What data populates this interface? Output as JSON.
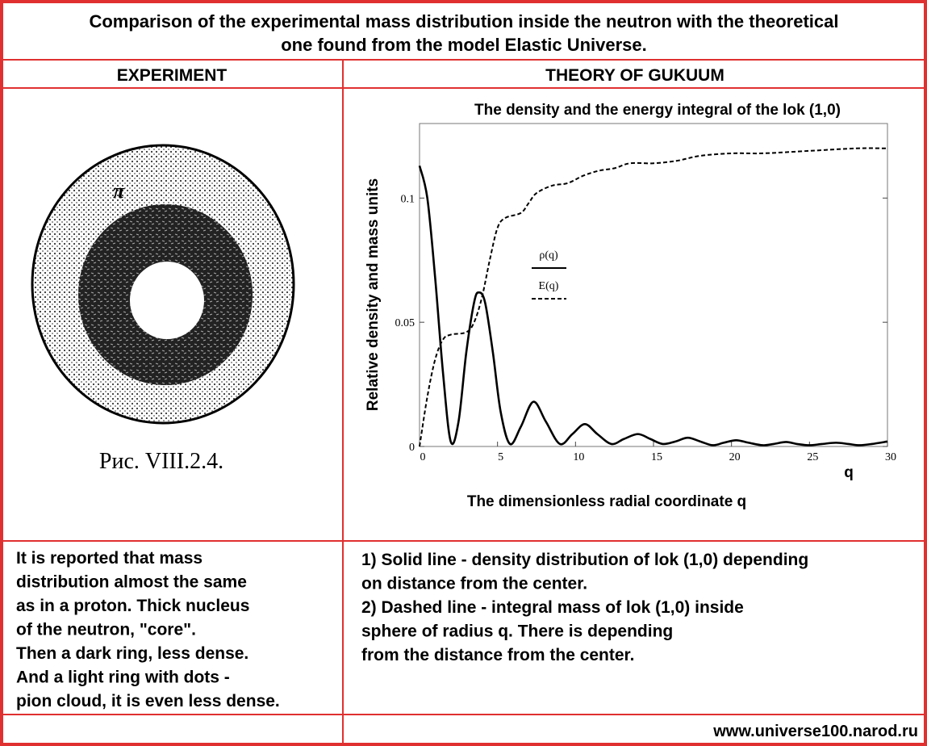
{
  "header": {
    "title_lines": [
      "Comparison of the experimental mass distribution inside the neutron with the theoretical",
      "one found from the model Elastic Universe."
    ],
    "left_column": "EXPERIMENT",
    "right_column": "THEORY OF GUKUUM"
  },
  "figure": {
    "symbol": "π",
    "caption": "Рис. VIII.2.4."
  },
  "chart_data": {
    "type": "line",
    "title": "The density and the energy integral of the lok (1,0)",
    "x_label": "The dimensionless radial coordinate q",
    "x_symbol": "q",
    "y_label": "Relative density and mass units",
    "xlim": [
      0,
      30
    ],
    "xticks": [
      0,
      5,
      10,
      15,
      20,
      25,
      30
    ],
    "ylim": [
      0,
      0.13
    ],
    "yticks": [
      0,
      0.05,
      0.1
    ],
    "series": [
      {
        "name": "ρ(q)",
        "color": "#000000",
        "dash": false,
        "x": [
          0,
          0.5,
          1,
          1.5,
          2,
          2.5,
          3,
          3.5,
          3.8,
          4.2,
          4.7,
          5.2,
          5.8,
          6.5,
          7.3,
          8.1,
          9,
          9.8,
          10.6,
          11.4,
          12.3,
          13.1,
          14,
          14.8,
          15.6,
          16.4,
          17.2,
          18,
          18.8,
          19.5,
          20.3,
          21.1,
          22,
          22.7,
          23.5,
          24.2,
          25,
          25.8,
          26.7,
          27.5,
          28.2,
          29,
          30
        ],
        "values": [
          0.113,
          0.1,
          0.068,
          0.03,
          0.002,
          0.01,
          0.038,
          0.058,
          0.062,
          0.058,
          0.038,
          0.014,
          0.001,
          0.008,
          0.018,
          0.01,
          0.001,
          0.005,
          0.009,
          0.005,
          0.001,
          0.003,
          0.005,
          0.003,
          0.001,
          0.002,
          0.0035,
          0.002,
          0.0005,
          0.0015,
          0.0025,
          0.0015,
          0.0005,
          0.001,
          0.0018,
          0.001,
          0.0005,
          0.001,
          0.0015,
          0.001,
          0.0005,
          0.001,
          0.002
        ]
      },
      {
        "name": "E(q)",
        "color": "#000000",
        "dash": true,
        "x": [
          0,
          0.5,
          1,
          1.5,
          2,
          3,
          3.5,
          4,
          4.5,
          5,
          5.5,
          6.5,
          7,
          7.5,
          8.5,
          9.5,
          10.5,
          11.5,
          12.5,
          13.5,
          15,
          16.5,
          18,
          20,
          22,
          25,
          28,
          30
        ],
        "values": [
          0,
          0.02,
          0.035,
          0.043,
          0.045,
          0.046,
          0.05,
          0.06,
          0.075,
          0.088,
          0.092,
          0.094,
          0.098,
          0.102,
          0.105,
          0.106,
          0.109,
          0.111,
          0.112,
          0.114,
          0.114,
          0.115,
          0.117,
          0.118,
          0.118,
          0.119,
          0.12,
          0.12
        ]
      }
    ]
  },
  "notes": {
    "left_lines": [
      " It is reported that mass",
      "distribution almost the same",
      "as in a proton. Thick nucleus",
      "of the neutron, \"core\".",
      "Then a dark ring, less dense.",
      "And a light ring with dots -",
      "pion cloud, it is even less dense."
    ],
    "right_lines": [
      "  1) Solid line - density distribution of lok (1,0) depending",
      "on distance from the center.",
      "2) Dashed line - integral mass of lok (1,0) inside",
      "sphere of radius q. There is depending",
      "from the distance from the center."
    ]
  },
  "footer": "www.universe100.narod.ru"
}
